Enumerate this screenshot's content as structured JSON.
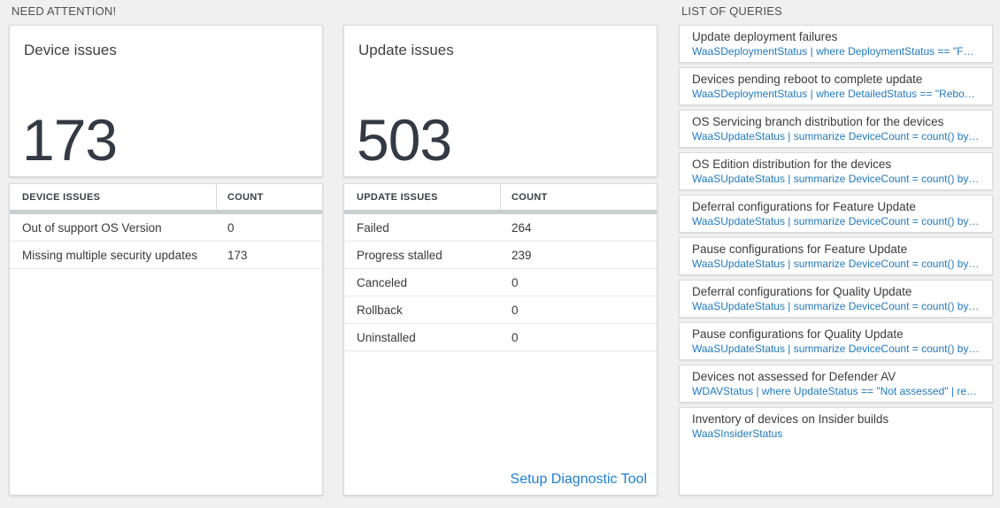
{
  "colors": {
    "page_background": "#f0f0f0",
    "link_blue": "#1b7fd4",
    "query_blue": "#2179be",
    "big_number": "#333a44"
  },
  "sections": {
    "need_attention_title": "NEED ATTENTION!",
    "queries_title": "LIST OF QUERIES"
  },
  "device_panel": {
    "title": "Device issues",
    "count": "173",
    "headers": {
      "issue": "DEVICE ISSUES",
      "count": "COUNT"
    },
    "rows": [
      {
        "label": "Out of support OS Version",
        "count": "0"
      },
      {
        "label": "Missing multiple security updates",
        "count": "173"
      }
    ]
  },
  "update_panel": {
    "title": "Update issues",
    "count": "503",
    "headers": {
      "issue": "UPDATE ISSUES",
      "count": "COUNT"
    },
    "rows": [
      {
        "label": "Failed",
        "count": "264"
      },
      {
        "label": "Progress stalled",
        "count": "239"
      },
      {
        "label": "Canceled",
        "count": "0"
      },
      {
        "label": "Rollback",
        "count": "0"
      },
      {
        "label": "Uninstalled",
        "count": "0"
      }
    ],
    "footer_link": "Setup Diagnostic Tool"
  },
  "queries": {
    "items": [
      {
        "name": "Update deployment failures",
        "query": "WaaSDeploymentStatus | where DeploymentStatus == \"Failed\" |..."
      },
      {
        "name": "Devices pending reboot to complete update",
        "query": "WaaSDeploymentStatus | where DetailedStatus == \"Reboot pend..."
      },
      {
        "name": "OS Servicing branch distribution for the devices",
        "query": "WaaSUpdateStatus | summarize DeviceCount = count() by OSSer..."
      },
      {
        "name": "OS Edition distribution for the devices",
        "query": "WaaSUpdateStatus | summarize DeviceCount = count() by OSEdit..."
      },
      {
        "name": "Deferral configurations for Feature Update",
        "query": "WaaSUpdateStatus | summarize DeviceCount = count() by Featur..."
      },
      {
        "name": "Pause configurations for Feature Update",
        "query": "WaaSUpdateStatus | summarize DeviceCount = count() by Featur..."
      },
      {
        "name": "Deferral configurations for Quality Update",
        "query": "WaaSUpdateStatus | summarize DeviceCount = count() by Qualit..."
      },
      {
        "name": "Pause configurations for Quality Update",
        "query": "WaaSUpdateStatus | summarize DeviceCount = count() by Qualit..."
      },
      {
        "name": "Devices not assessed for Defender AV",
        "query": "WDAVStatus | where UpdateStatus == \"Not assessed\" | render ta..."
      },
      {
        "name": "Inventory of devices on Insider builds",
        "query": "WaaSInsiderStatus"
      }
    ]
  }
}
